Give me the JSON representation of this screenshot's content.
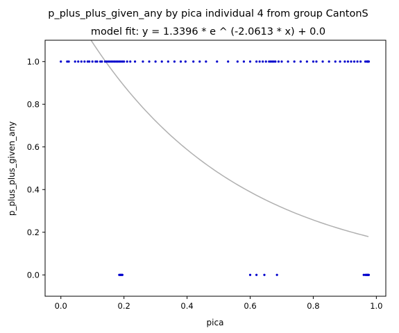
{
  "chart_data": {
    "type": "scatter",
    "title": "p_plus_plus_given_any by pica individual 4 from group CantonS",
    "subtitle": "model fit: y = 1.3396 * e ^ (-2.0613 * x) + 0.0",
    "xlabel": "pica",
    "ylabel": "p_plus_plus_given_any",
    "xlim": [
      -0.05,
      1.03
    ],
    "ylim": [
      -0.1,
      1.1
    ],
    "x_ticks": [
      0.0,
      0.2,
      0.4,
      0.6,
      0.8,
      1.0
    ],
    "x_tick_labels": [
      "0.0",
      "0.2",
      "0.4",
      "0.6",
      "0.8",
      "1.0"
    ],
    "y_ticks": [
      0.0,
      0.2,
      0.4,
      0.6,
      0.8,
      1.0
    ],
    "y_tick_labels": [
      "0.0",
      "0.2",
      "0.4",
      "0.6",
      "0.8",
      "1.0"
    ],
    "grid": false,
    "legend": "none",
    "point_color": "#0000cc",
    "fit_color": "#b0b0b0",
    "fit": {
      "a": 1.3396,
      "b": -2.0613,
      "c": 0.0,
      "x_range": [
        0.0,
        0.975
      ]
    },
    "points_y1": [
      0.0,
      0.02,
      0.025,
      0.045,
      0.055,
      0.065,
      0.075,
      0.085,
      0.09,
      0.1,
      0.11,
      0.115,
      0.125,
      0.13,
      0.14,
      0.145,
      0.15,
      0.155,
      0.16,
      0.165,
      0.17,
      0.175,
      0.18,
      0.185,
      0.19,
      0.195,
      0.2,
      0.21,
      0.22,
      0.235,
      0.26,
      0.28,
      0.3,
      0.32,
      0.34,
      0.36,
      0.38,
      0.395,
      0.42,
      0.44,
      0.46,
      0.495,
      0.53,
      0.56,
      0.58,
      0.6,
      0.62,
      0.63,
      0.64,
      0.65,
      0.66,
      0.665,
      0.67,
      0.675,
      0.68,
      0.69,
      0.7,
      0.72,
      0.74,
      0.76,
      0.78,
      0.8,
      0.81,
      0.83,
      0.85,
      0.87,
      0.885,
      0.9,
      0.91,
      0.92,
      0.93,
      0.94,
      0.95,
      0.965,
      0.97,
      0.972,
      0.974,
      0.976
    ],
    "points_y0": [
      0.185,
      0.188,
      0.19,
      0.193,
      0.195,
      0.6,
      0.62,
      0.645,
      0.685,
      0.96,
      0.965,
      0.968,
      0.97,
      0.972,
      0.974,
      0.976
    ]
  }
}
